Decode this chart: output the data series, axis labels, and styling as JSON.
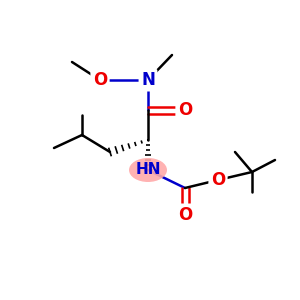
{
  "bg_color": "#ffffff",
  "atom_colors": {
    "C": "#000000",
    "N": "#0000cc",
    "O": "#ee0000"
  },
  "bond_color": "#000000",
  "bond_width": 1.8,
  "fig_size": [
    3.0,
    3.0
  ],
  "dpi": 100
}
